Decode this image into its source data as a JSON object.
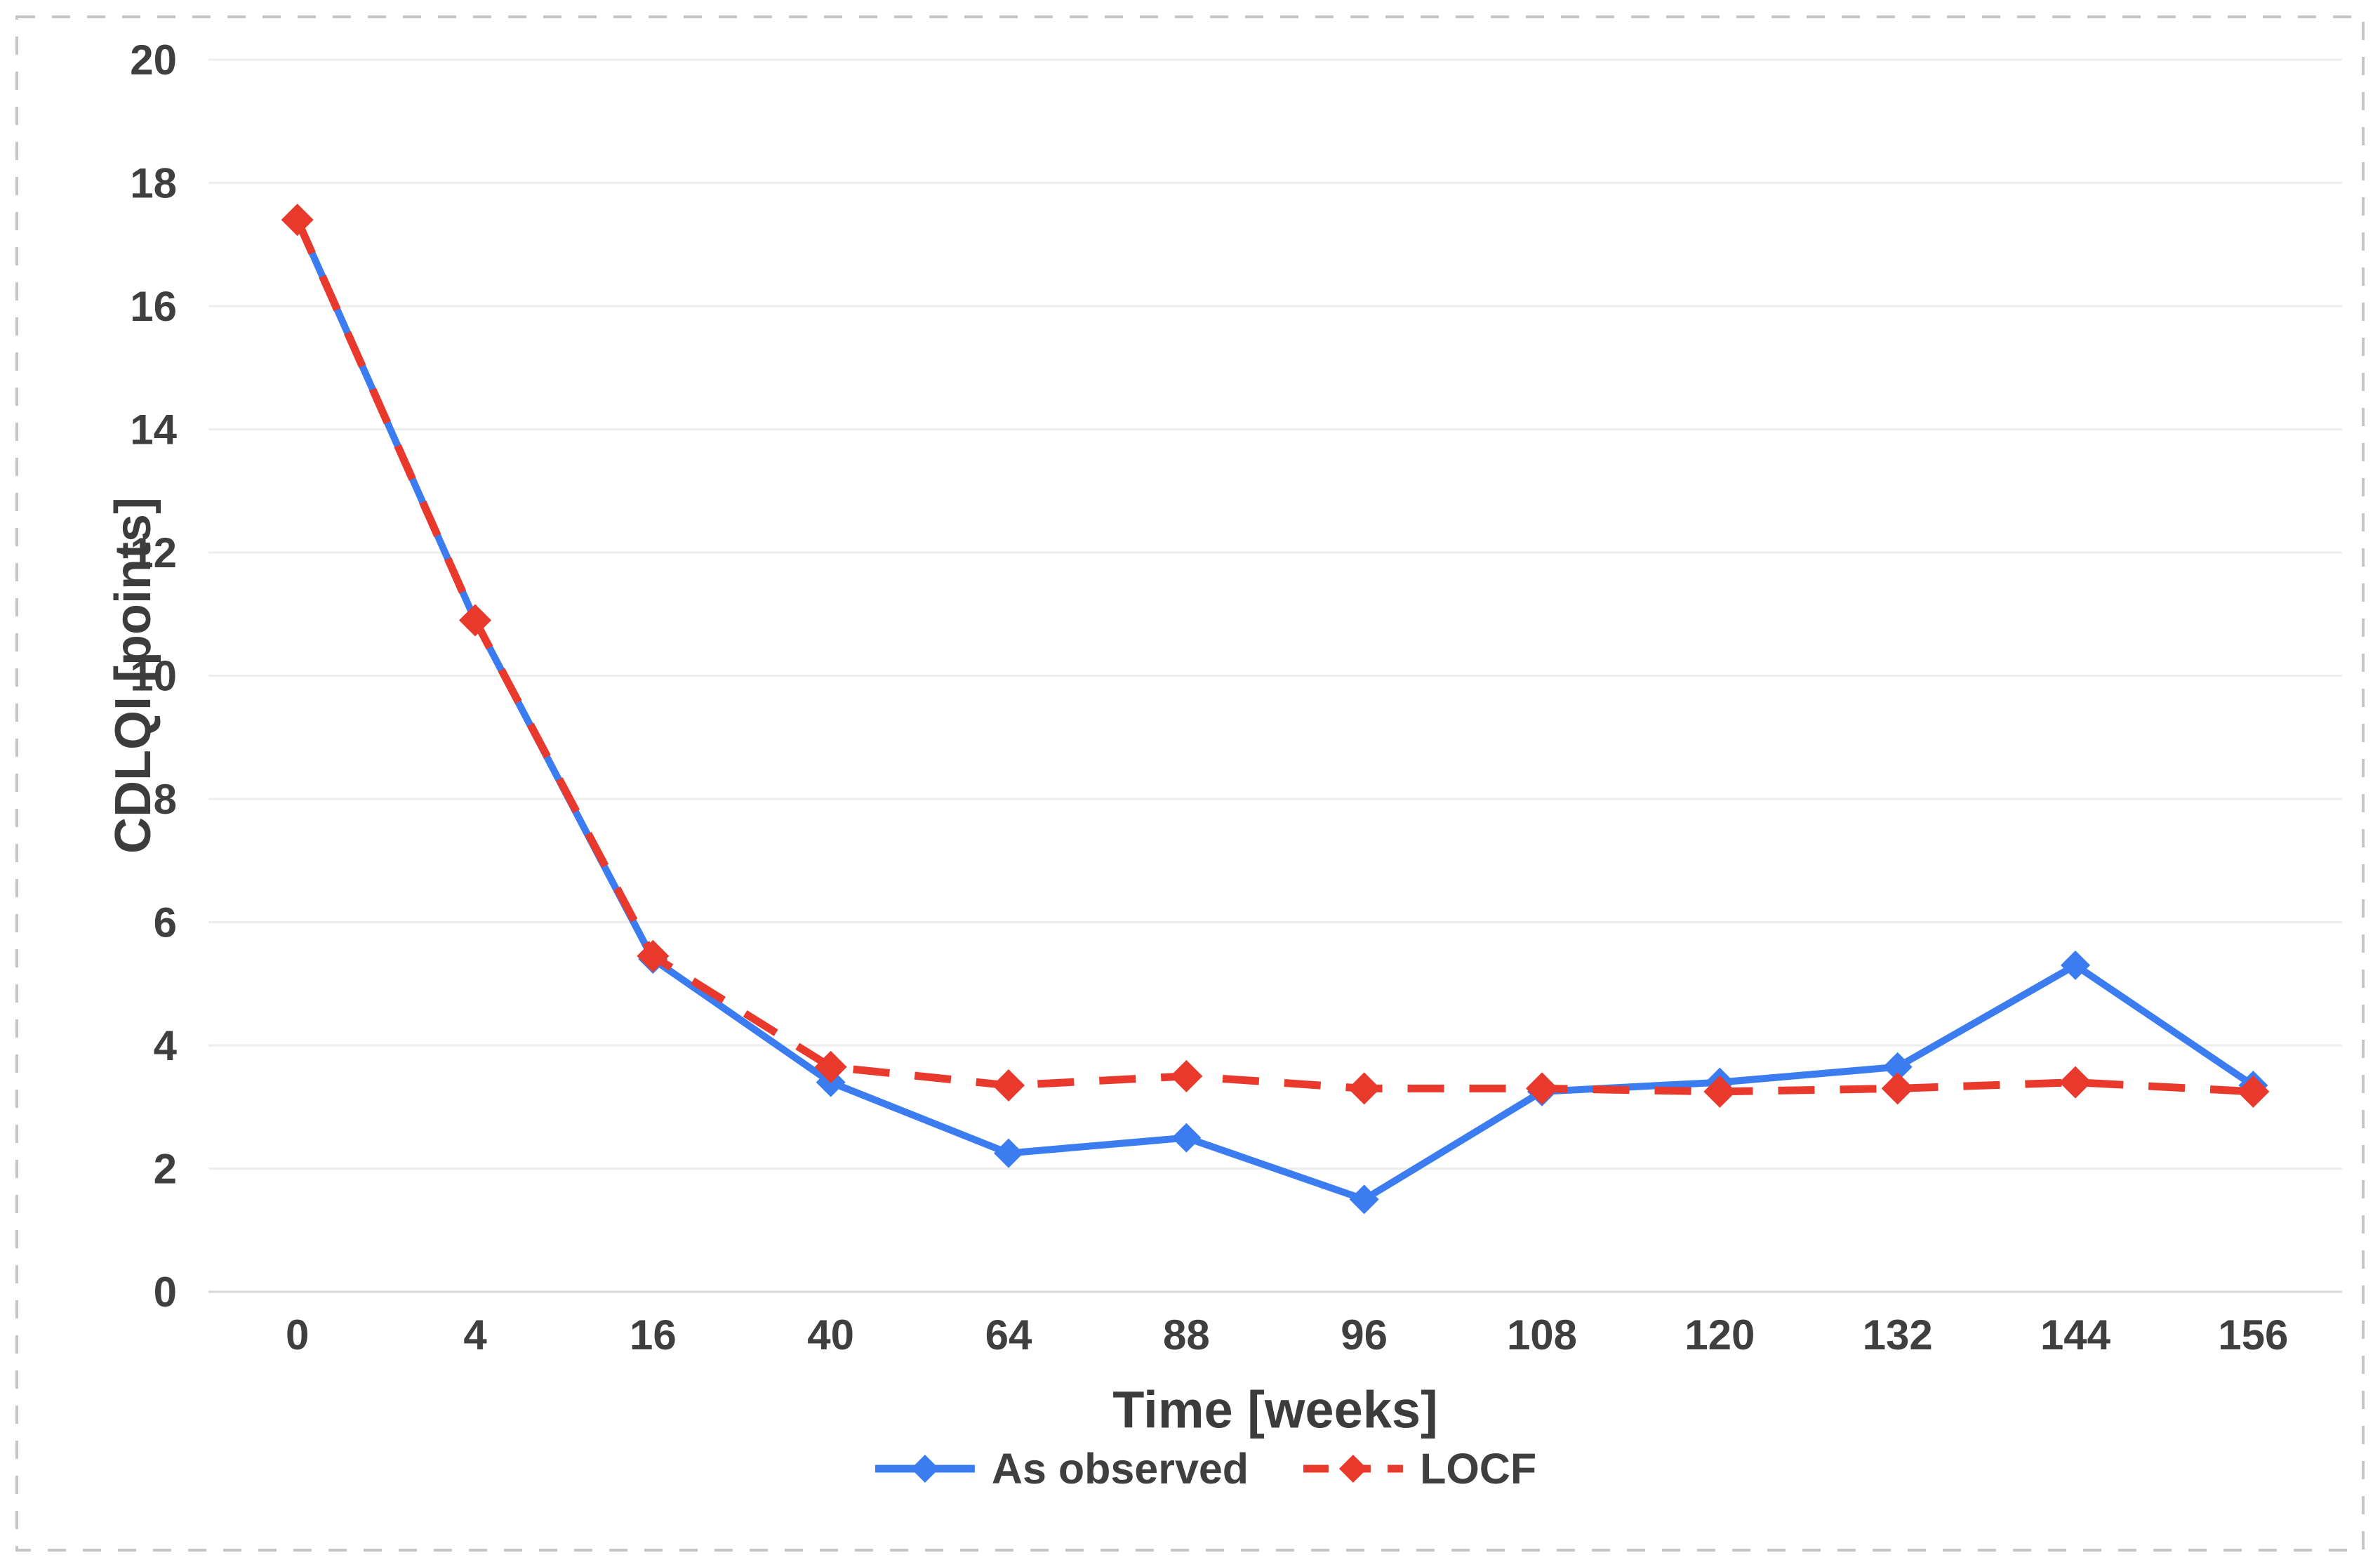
{
  "figure": {
    "background": "#ffffff",
    "border_color": "#c6c6c6",
    "gridline_color": "#ededed",
    "baseline_color": "#d7d7d7",
    "text_color": "#3f3f3f"
  },
  "chart_data": {
    "type": "line",
    "title": "",
    "xlabel": "Time [weeks]",
    "ylabel": "CDLQI [points]",
    "categories": [
      0,
      4,
      16,
      40,
      64,
      88,
      96,
      108,
      120,
      132,
      144,
      156
    ],
    "series": [
      {
        "name": "As observed",
        "color": "#3b7cf0",
        "style": "solid",
        "marker": "diamond",
        "values": [
          17.4,
          10.9,
          5.4,
          3.4,
          2.25,
          2.5,
          1.5,
          3.25,
          3.4,
          3.65,
          5.3,
          3.35
        ]
      },
      {
        "name": "LOCF",
        "color": "#e8392c",
        "style": "dashed",
        "marker": "diamond",
        "values": [
          17.4,
          10.9,
          5.45,
          3.65,
          3.35,
          3.5,
          3.3,
          3.3,
          3.25,
          3.3,
          3.4,
          3.25
        ]
      }
    ],
    "ylim": [
      0,
      20
    ],
    "yticks": [
      0,
      2,
      4,
      6,
      8,
      10,
      12,
      14,
      16,
      18,
      20
    ],
    "grid": "horizontal",
    "legend_position": "bottom"
  }
}
